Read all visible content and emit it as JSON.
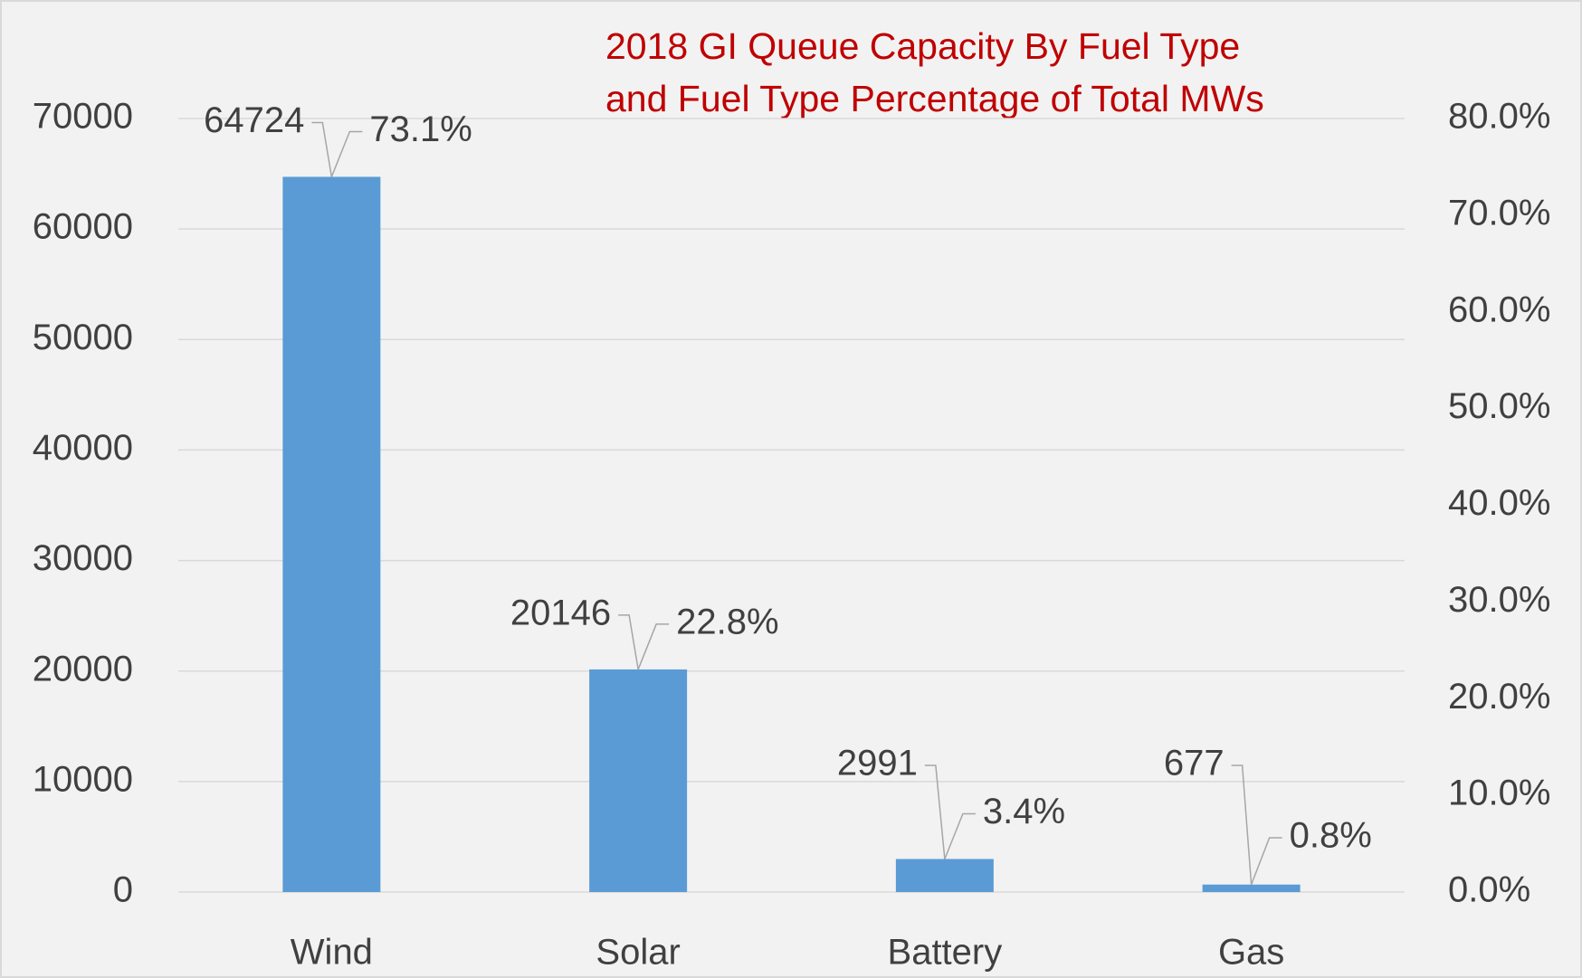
{
  "chart_data": {
    "type": "bar",
    "title": [
      "2018 GI Queue Capacity By Fuel Type",
      "and Fuel Type Percentage of Total MWs"
    ],
    "categories": [
      "Wind",
      "Solar",
      "Battery",
      "Gas"
    ],
    "series": [
      {
        "color": "#5b9bd5",
        "values": [
          64724,
          20146,
          2991,
          677
        ]
      },
      {
        "axis": "y2",
        "values": [
          73.1,
          22.8,
          3.4,
          0.8
        ],
        "value_labels": [
          "73.1%",
          "22.8%",
          "3.4%",
          "0.8%"
        ]
      }
    ],
    "ylim": [
      0,
      70000
    ],
    "yticks": [
      0,
      10000,
      20000,
      30000,
      40000,
      50000,
      60000,
      70000
    ],
    "y2lim": [
      0,
      80
    ],
    "y2ticks": [
      {
        "value": 0,
        "label": "0.0%"
      },
      {
        "value": 10,
        "label": "10.0%"
      },
      {
        "value": 20,
        "label": "20.0%"
      },
      {
        "value": 30,
        "label": "30.0%"
      },
      {
        "value": 40,
        "label": "40.0%"
      },
      {
        "value": 50,
        "label": "50.0%"
      },
      {
        "value": 60,
        "label": "60.0%"
      },
      {
        "value": 70,
        "label": "70.0%"
      },
      {
        "value": 80,
        "label": "80.0%"
      }
    ],
    "grid": true
  }
}
